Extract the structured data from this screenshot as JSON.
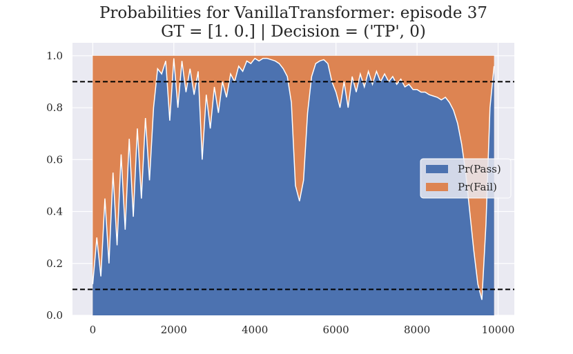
{
  "chart_data": {
    "type": "area",
    "title_line1": "Probabilities for VanillaTransformer: episode 37",
    "title_line2": "GT = [1. 0.] | Decision = ('TP', 0)",
    "xlabel": "",
    "ylabel": "",
    "xlim": [
      -500,
      10400
    ],
    "ylim": [
      0.0,
      1.05
    ],
    "x_ticks": [
      0,
      2000,
      4000,
      6000,
      8000,
      10000
    ],
    "y_ticks": [
      0.0,
      0.2,
      0.4,
      0.6,
      0.8,
      1.0
    ],
    "x_tick_labels": [
      "0",
      "2000",
      "4000",
      "6000",
      "8000",
      "10000"
    ],
    "y_tick_labels": [
      "0.0",
      "0.2",
      "0.4",
      "0.6",
      "0.8",
      "1.0"
    ],
    "grid": true,
    "legend_position": "center-right",
    "thresholds": [
      0.9,
      0.1
    ],
    "colors": {
      "pass": "#4c72b0",
      "fail": "#dd8452",
      "background": "#eaeaf2",
      "grid": "#ffffff",
      "threshold": "#000000",
      "boundary": "#ffffff"
    },
    "series": [
      {
        "name": "Pr(Pass)",
        "x": [
          0,
          100,
          200,
          300,
          400,
          500,
          600,
          700,
          800,
          900,
          1000,
          1100,
          1200,
          1300,
          1400,
          1500,
          1600,
          1700,
          1800,
          1900,
          2000,
          2100,
          2200,
          2300,
          2400,
          2500,
          2600,
          2700,
          2800,
          2900,
          3000,
          3100,
          3200,
          3300,
          3400,
          3500,
          3600,
          3700,
          3800,
          3900,
          4000,
          4100,
          4200,
          4300,
          4400,
          4500,
          4600,
          4700,
          4800,
          4900,
          5000,
          5100,
          5200,
          5300,
          5400,
          5500,
          5600,
          5700,
          5800,
          5900,
          6000,
          6100,
          6200,
          6300,
          6400,
          6500,
          6600,
          6700,
          6800,
          6900,
          7000,
          7100,
          7200,
          7300,
          7400,
          7500,
          7600,
          7700,
          7800,
          7900,
          8000,
          8100,
          8200,
          8300,
          8400,
          8500,
          8600,
          8700,
          8800,
          8900,
          9000,
          9100,
          9200,
          9300,
          9400,
          9500,
          9600,
          9700,
          9800,
          9900
        ],
        "values": [
          0.12,
          0.3,
          0.15,
          0.45,
          0.2,
          0.55,
          0.27,
          0.62,
          0.33,
          0.68,
          0.38,
          0.72,
          0.45,
          0.76,
          0.52,
          0.8,
          0.95,
          0.93,
          0.98,
          0.75,
          0.99,
          0.8,
          0.98,
          0.86,
          0.95,
          0.85,
          0.94,
          0.6,
          0.85,
          0.72,
          0.88,
          0.78,
          0.9,
          0.84,
          0.93,
          0.9,
          0.96,
          0.94,
          0.98,
          0.97,
          0.99,
          0.98,
          0.99,
          0.99,
          0.985,
          0.98,
          0.97,
          0.95,
          0.92,
          0.82,
          0.5,
          0.44,
          0.52,
          0.78,
          0.92,
          0.97,
          0.98,
          0.985,
          0.97,
          0.9,
          0.86,
          0.8,
          0.9,
          0.8,
          0.92,
          0.86,
          0.93,
          0.88,
          0.94,
          0.89,
          0.94,
          0.9,
          0.93,
          0.9,
          0.92,
          0.89,
          0.91,
          0.88,
          0.89,
          0.87,
          0.87,
          0.86,
          0.86,
          0.85,
          0.845,
          0.84,
          0.83,
          0.84,
          0.82,
          0.79,
          0.74,
          0.66,
          0.55,
          0.4,
          0.25,
          0.12,
          0.06,
          0.35,
          0.8,
          0.96
        ]
      },
      {
        "name": "Pr(Fail)",
        "values_note_complement": true
      }
    ]
  }
}
